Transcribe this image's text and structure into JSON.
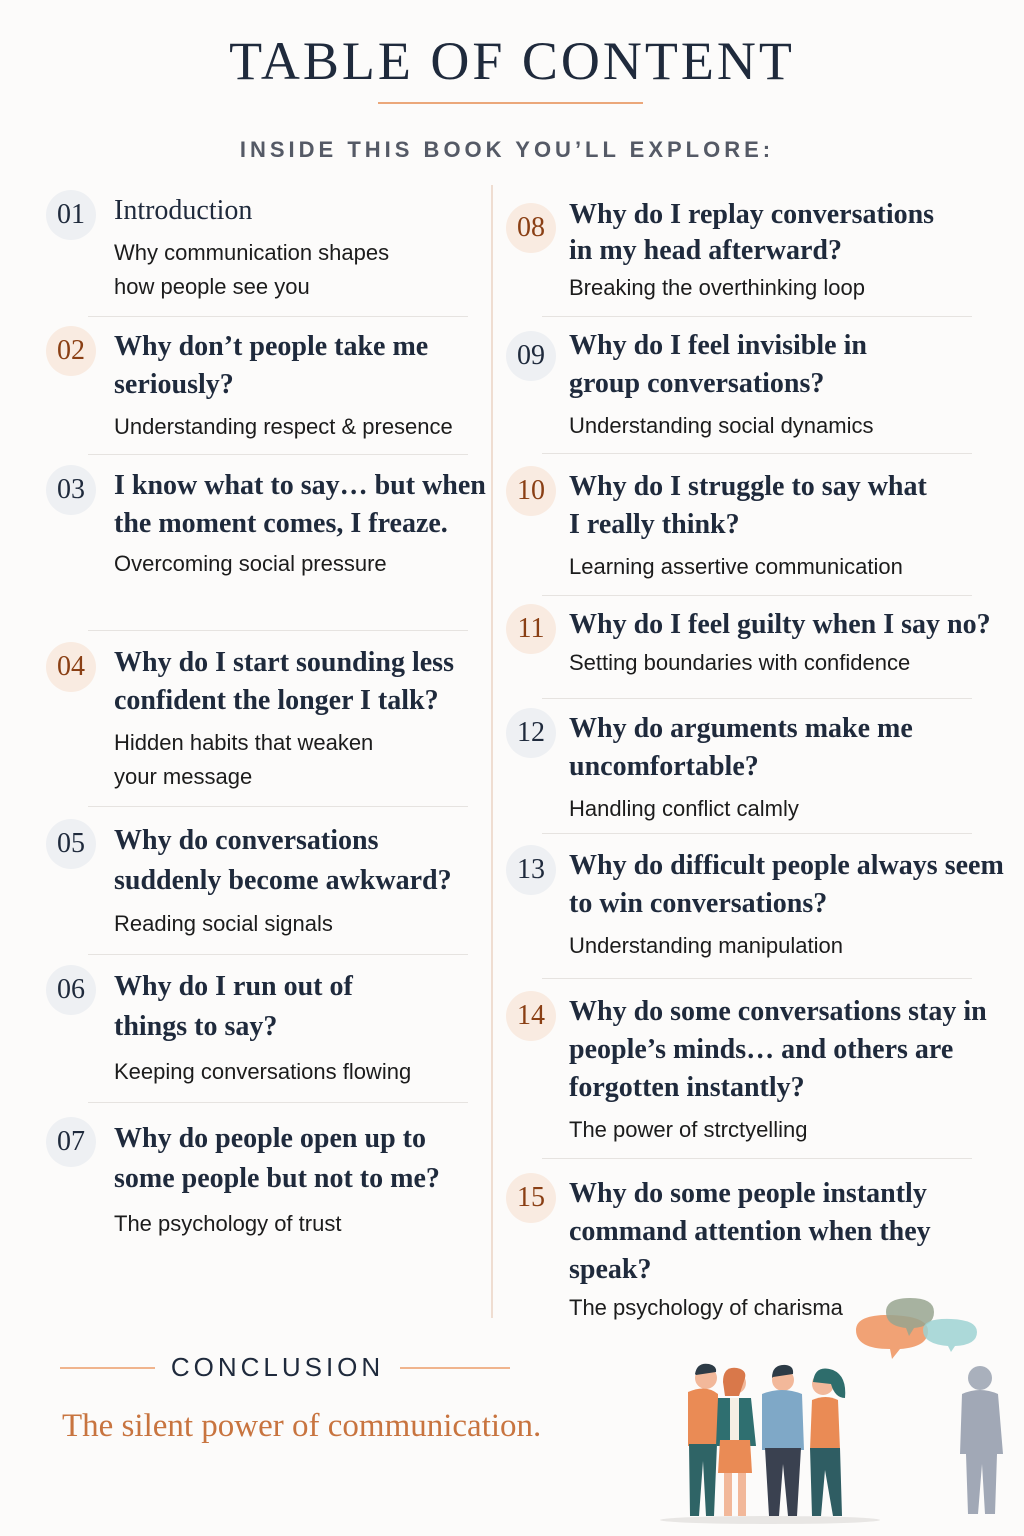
{
  "header": {
    "title": "TABLE OF CONTENT",
    "subtitle": "INSIDE THIS BOOK YOU’LL EXPLORE:"
  },
  "colors": {
    "accent": "#c8743f",
    "text": "#1f2a3c",
    "badge_grey": "#eef0f3",
    "badge_peach": "#f9ebe1"
  },
  "chapters": [
    {
      "num": "01",
      "title": "Introduction",
      "subtitle": "Why communication shapes how people see you",
      "badge": "grey"
    },
    {
      "num": "02",
      "title": "Why don’t people take me seriously?",
      "subtitle": "Understanding respect & presence",
      "badge": "peach"
    },
    {
      "num": "03",
      "title": "I know what to say… but when the moment comes, I freaze.",
      "subtitle": "Overcoming social pressure",
      "badge": "grey"
    },
    {
      "num": "04",
      "title": "Why do I start sounding less confident the longer I talk?",
      "subtitle": "Hidden habits that weaken your message",
      "badge": "peach"
    },
    {
      "num": "05",
      "title": "Why do conversations suddenly become awkward?",
      "subtitle": "Reading social signals",
      "badge": "grey"
    },
    {
      "num": "06",
      "title": "Why do I run out of things to say?",
      "subtitle": "Keeping conversations flowing",
      "badge": "grey"
    },
    {
      "num": "07",
      "title": "Why do people open up to some people but not to me?",
      "subtitle": "The psychology of trust",
      "badge": "grey"
    },
    {
      "num": "08",
      "title": "Why do I replay conversations in my head afterward?",
      "subtitle": "Breaking the overthinking loop",
      "badge": "peach"
    },
    {
      "num": "09",
      "title": "Why do I feel invisible in group conversations?",
      "subtitle": "Understanding social dynamics",
      "badge": "grey"
    },
    {
      "num": "10",
      "title": "Why do I struggle to say what I really think?",
      "subtitle": "Learning assertive communication",
      "badge": "peach"
    },
    {
      "num": "11",
      "title": "Why do I feel guilty when I say no?",
      "subtitle": "Setting boundaries with confidence",
      "badge": "peach"
    },
    {
      "num": "12",
      "title": "Why do arguments make me uncomfortable?",
      "subtitle": "Handling conflict calmly",
      "badge": "grey"
    },
    {
      "num": "13",
      "title": "Why do difficult people always seem to win conversations?",
      "subtitle": "Understanding manipulation",
      "badge": "grey"
    },
    {
      "num": "14",
      "title": "Why do some conversations stay in people’s minds… and others are forgotten instantly?",
      "subtitle": "The power of strctyelling",
      "badge": "peach"
    },
    {
      "num": "15",
      "title": "Why do some people instantly command attention when they speak?",
      "subtitle": "The psychology of charisma",
      "badge": "peach"
    }
  ],
  "conclusion": {
    "label": "CONCLUSION",
    "text": "The silent power of communication."
  },
  "illustration": "group-conversation-with-observer-and-speech-bubbles"
}
